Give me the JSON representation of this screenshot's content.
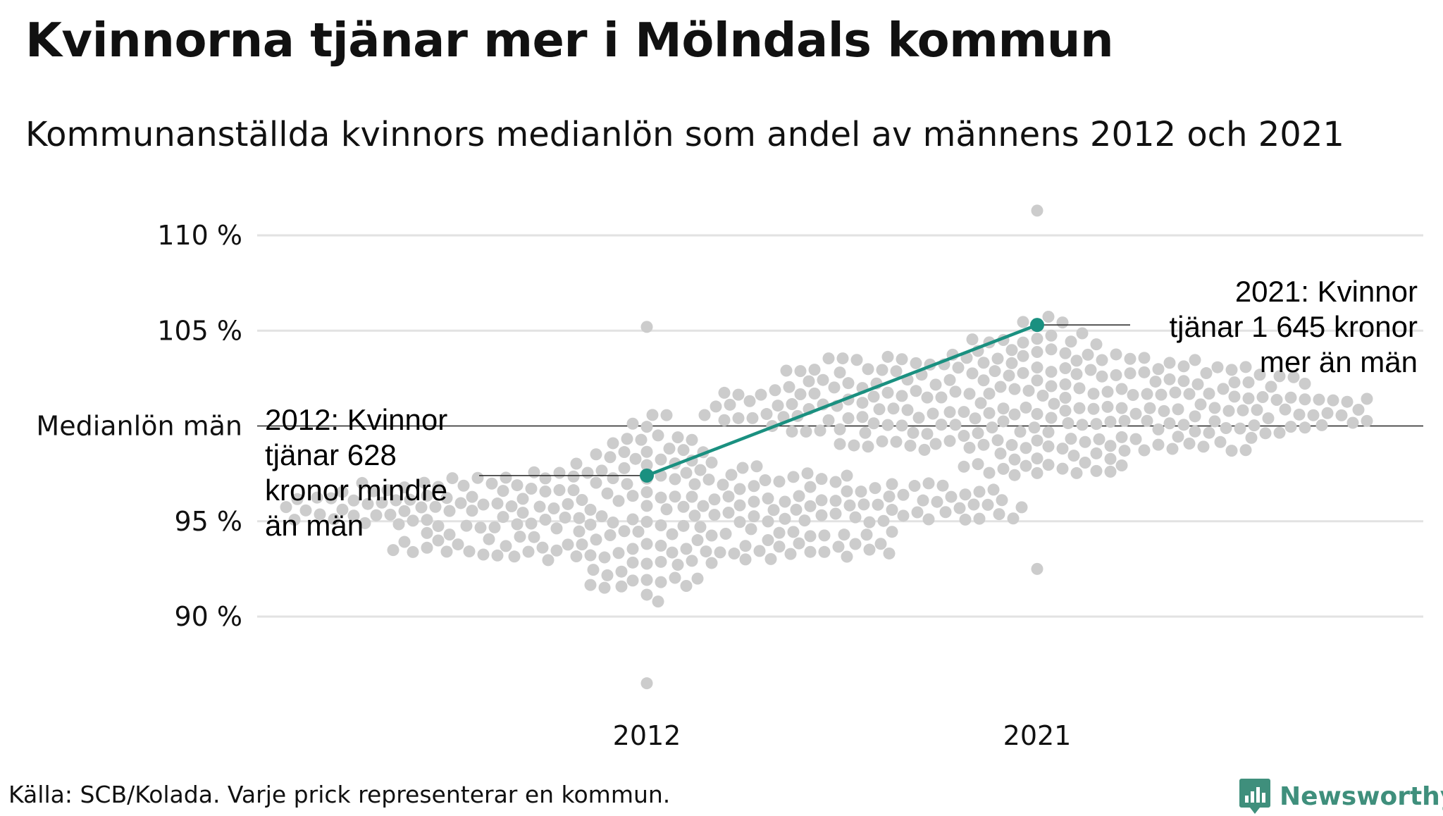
{
  "chart_data": {
    "type": "scatter",
    "title": "Kvinnorna tjänar mer i Mölndals kommun",
    "subtitle": "Kommunanställda kvinnors medianlön som andel av männens 2012 och 2021",
    "categories": [
      "2012",
      "2021"
    ],
    "ylim": [
      86,
      113
    ],
    "yticks": [
      {
        "value": 90,
        "label": "90 %"
      },
      {
        "value": 95,
        "label": "95 %"
      },
      {
        "value": 100,
        "label": "Medianlön män"
      },
      {
        "value": 105,
        "label": "105 %"
      },
      {
        "value": 110,
        "label": "110 %"
      }
    ],
    "grid": true,
    "highlight": {
      "name": "Mölndal",
      "values": [
        97.4,
        105.3
      ],
      "color": "#1a9080"
    },
    "annotations": [
      {
        "category": "2012",
        "value": 97.4,
        "lines": [
          "2012: Kvinnor",
          "tjänar 628",
          "kronor mindre",
          "än män"
        ]
      },
      {
        "category": "2021",
        "value": 105.3,
        "lines": [
          "2021: Kvinnor",
          "tjänar 1 645 kronor",
          "mer än män"
        ]
      }
    ],
    "distribution": {
      "description": "Each dot represents one municipality",
      "count_per_year": 290,
      "2012": {
        "median": 95.5,
        "min": 86.5,
        "max": 105.2
      },
      "2021": {
        "median": 101.0,
        "min": 92.5,
        "max": 111.3
      }
    },
    "dot_color": "#cccccc"
  },
  "source": "Källa: SCB/Kolada. Varje prick representerar en kommun.",
  "brand": {
    "name": "Newsworthy",
    "icon": "newsworthy-logo-icon",
    "color": "#3f8f7c"
  }
}
